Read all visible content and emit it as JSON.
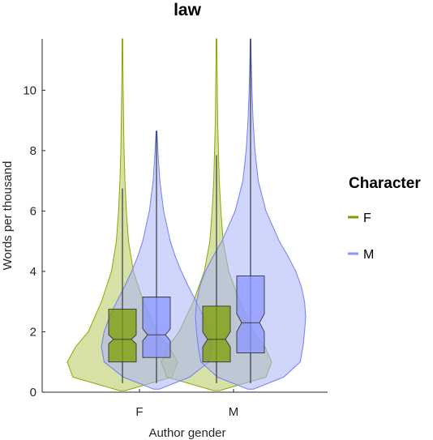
{
  "chart_data": {
    "type": "violin",
    "title": "law",
    "xlabel": "Author gender",
    "ylabel": "Words per thousand",
    "categories": [
      "F",
      "M"
    ],
    "ylim": [
      0,
      11.7
    ],
    "yticks": [
      0,
      2,
      4,
      6,
      8,
      10
    ],
    "grid": false,
    "legend": {
      "title": "Character",
      "position": "right"
    },
    "series": [
      {
        "name": "F",
        "color": "#8aa800",
        "fill_color": "#b7c95d",
        "box_color": "#7e9e00",
        "stats": [
          {
            "category": "F",
            "whisker_low": 0.3,
            "q1": 1.0,
            "median": 1.75,
            "q3": 2.75,
            "whisker_high": 6.75,
            "notch_low": 1.6,
            "notch_high": 1.9,
            "max": 11.7,
            "density": [
              [
                0.05,
                0.05
              ],
              [
                0.5,
                0.9
              ],
              [
                1.0,
                1.0
              ],
              [
                1.5,
                0.85
              ],
              [
                2.0,
                0.62
              ],
              [
                2.5,
                0.5
              ],
              [
                3.0,
                0.38
              ],
              [
                4.0,
                0.2
              ],
              [
                5.0,
                0.11
              ],
              [
                6.0,
                0.07
              ],
              [
                7.0,
                0.045
              ],
              [
                8.0,
                0.03
              ],
              [
                9.0,
                0.02
              ],
              [
                10.0,
                0.013
              ],
              [
                11.0,
                0.008
              ],
              [
                11.7,
                0.006
              ]
            ]
          },
          {
            "category": "M",
            "whisker_low": 0.3,
            "q1": 1.0,
            "median": 1.75,
            "q3": 2.85,
            "whisker_high": 7.85,
            "notch_low": 1.5,
            "notch_high": 2.0,
            "max": 11.7,
            "density": [
              [
                0.05,
                0.05
              ],
              [
                0.5,
                0.9
              ],
              [
                1.0,
                1.0
              ],
              [
                1.5,
                0.88
              ],
              [
                2.0,
                0.68
              ],
              [
                2.5,
                0.55
              ],
              [
                3.0,
                0.42
              ],
              [
                4.0,
                0.22
              ],
              [
                5.0,
                0.12
              ],
              [
                6.0,
                0.08
              ],
              [
                7.0,
                0.05
              ],
              [
                8.0,
                0.035
              ],
              [
                9.0,
                0.02
              ],
              [
                10.0,
                0.014
              ],
              [
                11.0,
                0.009
              ],
              [
                11.7,
                0.006
              ]
            ]
          }
        ]
      },
      {
        "name": "M",
        "color": "#6f7ff5",
        "fill_color": "#aab2fa",
        "box_color": "#8b96ff",
        "stats": [
          {
            "category": "F",
            "whisker_low": 0.3,
            "q1": 1.15,
            "median": 1.9,
            "q3": 3.15,
            "whisker_high": 8.65,
            "notch_low": 1.7,
            "notch_high": 2.1,
            "max": 8.65,
            "density": [
              [
                0.1,
                0.05
              ],
              [
                0.5,
                0.6
              ],
              [
                1.0,
                0.95
              ],
              [
                1.5,
                1.0
              ],
              [
                2.0,
                0.95
              ],
              [
                2.5,
                0.85
              ],
              [
                3.0,
                0.72
              ],
              [
                3.5,
                0.58
              ],
              [
                4.0,
                0.45
              ],
              [
                4.5,
                0.34
              ],
              [
                5.0,
                0.25
              ],
              [
                6.0,
                0.13
              ],
              [
                7.0,
                0.06
              ],
              [
                8.0,
                0.025
              ],
              [
                8.65,
                0.008
              ]
            ]
          },
          {
            "category": "M",
            "whisker_low": 0.3,
            "q1": 1.3,
            "median": 2.3,
            "q3": 3.85,
            "whisker_high": 11.7,
            "notch_low": 2.0,
            "notch_high": 2.6,
            "max": 11.7,
            "density": [
              [
                0.1,
                0.05
              ],
              [
                0.5,
                0.6
              ],
              [
                1.0,
                0.9
              ],
              [
                1.5,
                0.95
              ],
              [
                2.0,
                0.98
              ],
              [
                2.5,
                1.0
              ],
              [
                3.0,
                0.98
              ],
              [
                3.5,
                0.92
              ],
              [
                4.0,
                0.82
              ],
              [
                4.5,
                0.68
              ],
              [
                5.0,
                0.52
              ],
              [
                6.0,
                0.28
              ],
              [
                7.0,
                0.14
              ],
              [
                8.0,
                0.08
              ],
              [
                9.0,
                0.045
              ],
              [
                10.0,
                0.025
              ],
              [
                11.0,
                0.012
              ],
              [
                11.7,
                0.006
              ]
            ]
          }
        ]
      }
    ]
  }
}
